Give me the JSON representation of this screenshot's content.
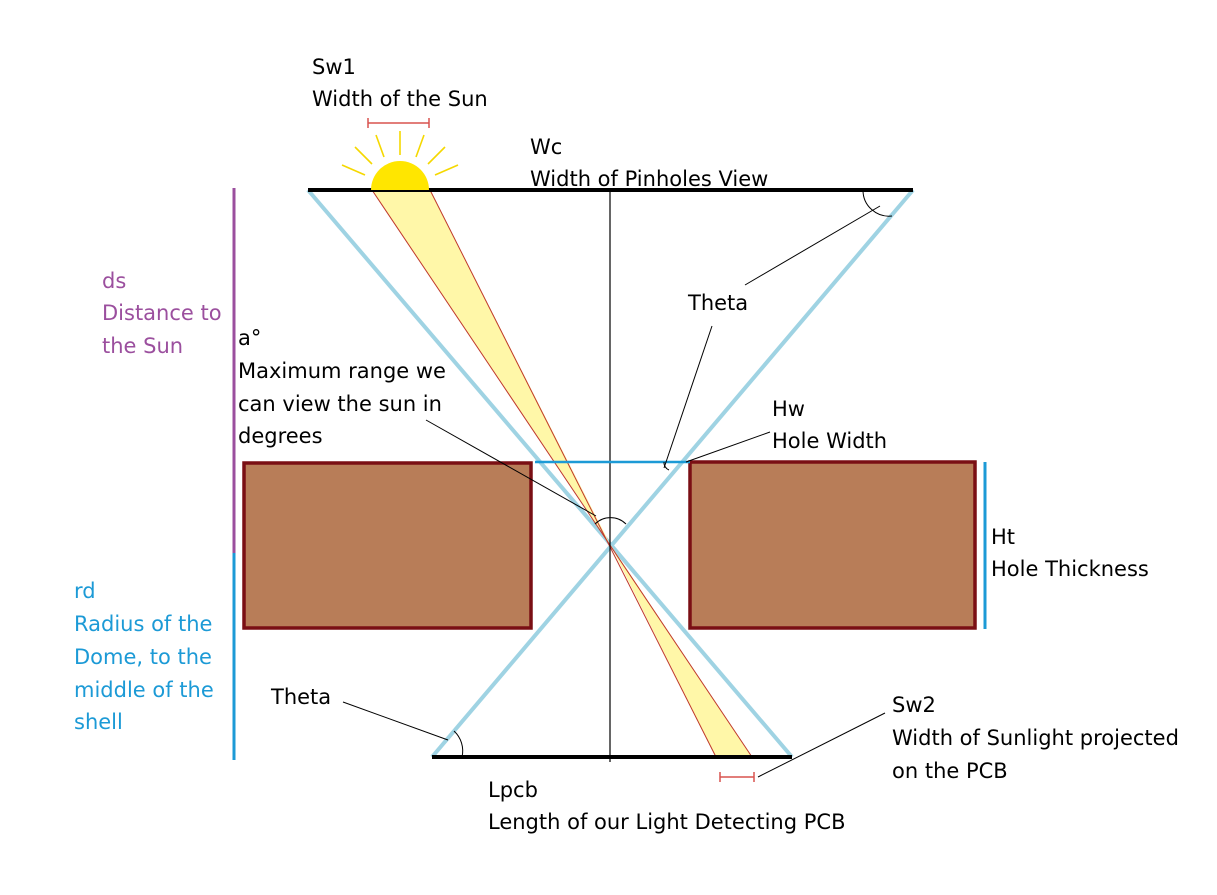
{
  "colors": {
    "line_black": "#000000",
    "view_cone": "#9fd3e3",
    "sun_fill": "#ffe600",
    "sun_rays": "#f5d800",
    "beam_fill": "#fff7a8",
    "beam_edge": "#c0392b",
    "block_fill": "#b87d58",
    "block_edge": "#7a0f14",
    "measure_red": "#d9534f",
    "purple": "#9b4f9e",
    "blue": "#1c9ad6",
    "hole_line": "#1c9ad6"
  },
  "labels": {
    "sw1": [
      "Sw1",
      "Width of the Sun"
    ],
    "wc": [
      "Wc",
      "Width of Pinholes View"
    ],
    "theta_top": [
      "Theta"
    ],
    "ds": [
      "ds",
      "Distance to",
      "the Sun"
    ],
    "alpha": [
      "a°",
      "Maximum range we",
      "can view the sun in",
      "degrees"
    ],
    "hw": [
      "Hw",
      "Hole Width"
    ],
    "ht": [
      "Ht",
      "Hole Thickness"
    ],
    "rd": [
      "rd",
      "Radius of the",
      "Dome, to the",
      "middle of the",
      "shell"
    ],
    "theta_bottom": [
      "Theta"
    ],
    "sw2": [
      "Sw2",
      "Width of Sunlight projected",
      "on the PCB"
    ],
    "lpcb": [
      "Lpcb",
      "Length of our Light Detecting PCB"
    ]
  },
  "icons": {
    "sun": "sun-icon"
  }
}
